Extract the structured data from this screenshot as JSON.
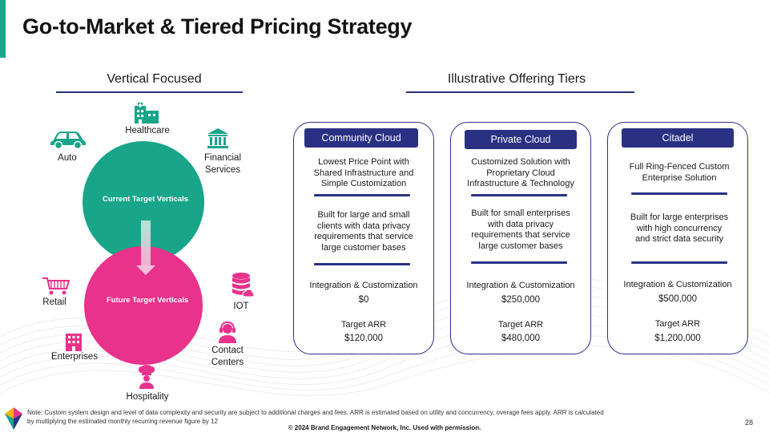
{
  "title": "Go-to-Market & Tiered Pricing Strategy",
  "colors": {
    "accent_green": "#18a58a",
    "accent_pink": "#e8328c",
    "navy": "#2a3183"
  },
  "left_section": {
    "heading": "Vertical Focused",
    "current_label": "Current Target Verticals",
    "future_label": "Future Target Verticals",
    "verticals": {
      "healthcare": {
        "label": "Healthcare",
        "icon": "hospital-building-icon"
      },
      "auto": {
        "label": "Auto",
        "icon": "car-icon"
      },
      "financial": {
        "label": "Financial\nServices",
        "icon": "bank-icon"
      },
      "retail": {
        "label": "Retail",
        "icon": "shopping-cart-icon"
      },
      "iot": {
        "label": "IOT",
        "icon": "database-cloud-icon"
      },
      "contact": {
        "label": "Contact\nCenters",
        "icon": "headset-agent-icon"
      },
      "enterprises": {
        "label": "Enterprises",
        "icon": "office-building-icon"
      },
      "hospitality": {
        "label": "Hospitality",
        "icon": "chef-icon"
      }
    }
  },
  "right_section": {
    "heading": "Illustrative Offering Tiers",
    "tiers": [
      {
        "name": "Community Cloud",
        "summary": "Lowest Price Point with\nShared Infrastructure and\nSimple Customization",
        "target": "Built for large and small\nclients with data privacy\nrequirements that service\nlarge customer bases",
        "integration_label": "Integration & Customization",
        "integration_price": "$0",
        "arr_label": "Target ARR",
        "arr_value": "$120,000"
      },
      {
        "name": "Private Cloud",
        "summary": "Customized Solution with\nProprietary Cloud\nInfrastructure & Technology",
        "target": "Built for small enterprises\nwith data privacy\nrequirements that service\nlarge customer bases",
        "integration_label": "Integration & Customization",
        "integration_price": "$250,000",
        "arr_label": "Target ARR",
        "arr_value": "$480,000"
      },
      {
        "name": "Citadel",
        "summary": "Full Ring-Fenced Custom\nEnterprise Solution",
        "target": "Built for large enterprises\nwith high concurrency\nand strict data security",
        "integration_label": "Integration & Customization",
        "integration_price": "$500,000",
        "arr_label": "Target ARR",
        "arr_value": "$1,200,000"
      }
    ]
  },
  "footer": {
    "note": "Note: Custom system design and level of data complexity and security are subject to additional charges and fees. ARR is estimated based on utility and concurrency, overage fees apply. ARR is calculated by multiplying the estimated monthly recurring revenue figure by 12",
    "page_number": "28",
    "copyright": "© 2024 Brand Engagement Network, Inc. Used with permission."
  }
}
